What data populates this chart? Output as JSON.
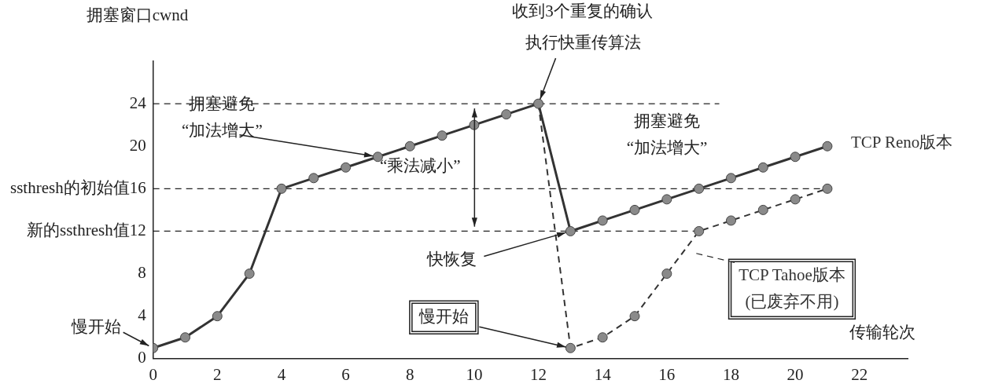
{
  "chart_data": {
    "type": "line",
    "xlabel": "传输轮次",
    "ylabel": "拥塞窗口cwnd",
    "series": [
      {
        "name": "TCP Reno版本",
        "color": "#333333",
        "line_style": "solid",
        "x": [
          0,
          1,
          2,
          3,
          4,
          5,
          6,
          7,
          8,
          9,
          10,
          11,
          12,
          13,
          14,
          15,
          16,
          17,
          18,
          19,
          20,
          21
        ],
        "values": [
          1,
          2,
          4,
          8,
          16,
          17,
          18,
          19,
          20,
          21,
          22,
          23,
          24,
          12,
          13,
          14,
          15,
          16,
          17,
          18,
          19,
          20
        ]
      },
      {
        "name": "TCP Tahoe版本",
        "color": "#333333",
        "line_style": "dashed",
        "x": [
          12,
          13,
          14,
          15,
          16,
          17,
          18,
          19,
          20,
          21
        ],
        "values": [
          24,
          1,
          2,
          4,
          8,
          12,
          13,
          14,
          15,
          16
        ]
      }
    ],
    "marker": "circle",
    "xlim": [
      0,
      23.5
    ],
    "xticks": [
      0,
      2,
      4,
      6,
      8,
      10,
      12,
      14,
      16,
      18,
      20,
      22
    ],
    "ylim": [
      0,
      28
    ],
    "yticks": [
      0,
      4,
      8,
      {
        "value": 12,
        "label": "新的ssthresh值12"
      },
      {
        "value": 16,
        "label": "ssthresh的初始值16"
      },
      20,
      24
    ],
    "ref_lines": [
      {
        "axis": "y",
        "value": 24,
        "line_style": "dashed"
      },
      {
        "axis": "y",
        "value": 16,
        "line_style": "dashed"
      },
      {
        "axis": "y",
        "value": 12,
        "line_style": "dashed"
      }
    ],
    "annotations": [
      {
        "text": "慢开始",
        "x": 0,
        "y": 1
      },
      {
        "text": "拥塞避免\n“加法增大”",
        "x": 7,
        "y": 19
      },
      "“乘法减小”",
      "收到3个重复的确认",
      "拥塞避免\n“加法增大”",
      {
        "text": "快恢复",
        "x": 13,
        "y": 12
      },
      {
        "text": "慢开始",
        "x": 13,
        "y": 1
      },
      "(已废弃不用)",
      {
        "text": "执行快重传算法",
        "x": 12,
        "y": 24
      }
    ],
    "grid": false,
    "legend": false
  }
}
